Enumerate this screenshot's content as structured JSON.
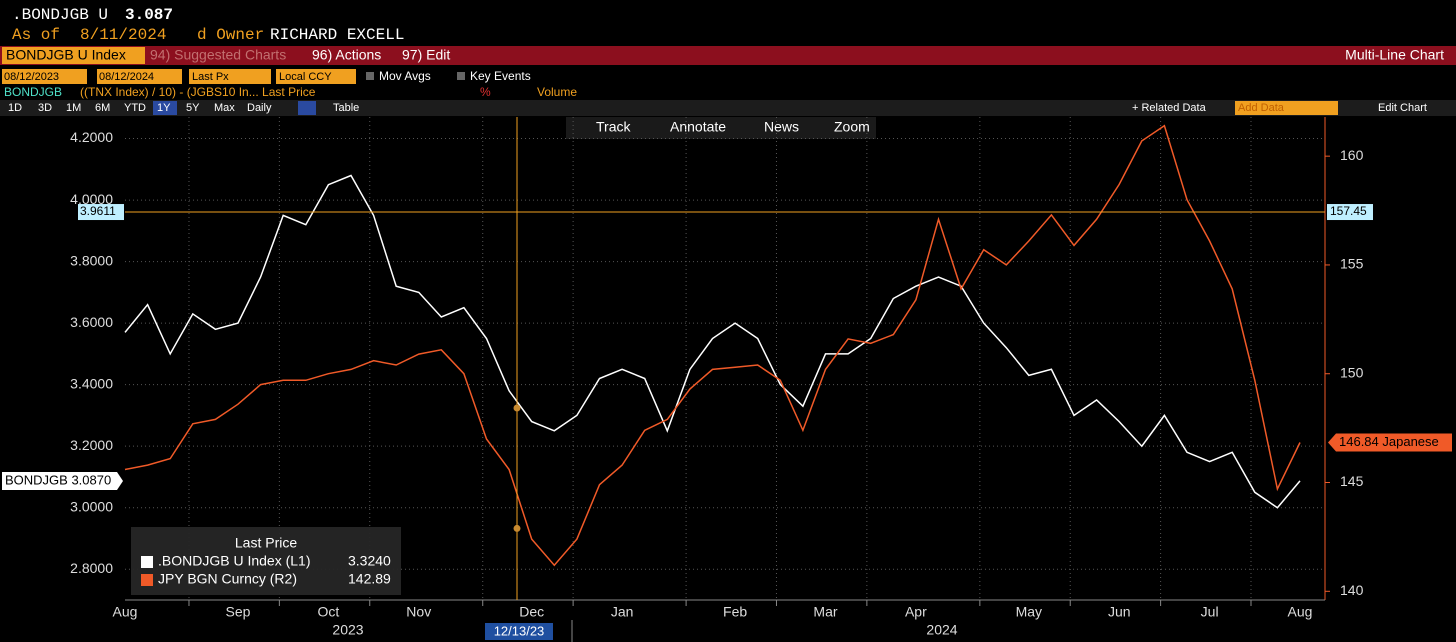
{
  "ui": {
    "ticker": ".BONDJGB U",
    "last": "3.087",
    "as_of_label": "As of",
    "as_of": "8/11/2024",
    "owner_label": "d Owner",
    "owner": "RICHARD EXCELL",
    "menu": [
      "BONDJGB U Index",
      "94) Suggested Charts",
      "96) Actions",
      "97) Edit"
    ],
    "chart_kind": "Multi-Line Chart",
    "start_date": "08/12/2023",
    "end_date": "08/12/2024",
    "field": "Last Px",
    "currency": "Local CCY",
    "mov_avgs": "Mov Avgs",
    "key_events": "Key Events",
    "study_name": "BONDJGB",
    "study_formula": "((TNX Index) / 10) - (JGBS10 In... Last Price",
    "percent": "%",
    "volume": "Volume",
    "periods": [
      "1D",
      "3D",
      "1M",
      "6M",
      "YTD",
      "1Y",
      "5Y",
      "Max"
    ],
    "frequency": "Daily",
    "table": "Table",
    "related_data": "+ Related Data",
    "add_data": "Add Data",
    "edit_chart": "Edit Chart",
    "tools": [
      "Track",
      "Annotate",
      "News",
      "Zoom"
    ]
  },
  "chart_data": {
    "type": "line",
    "categories": [
      "Aug",
      null,
      null,
      null,
      null,
      "Sep",
      null,
      null,
      null,
      "Oct",
      null,
      null,
      null,
      "Nov",
      null,
      null,
      null,
      null,
      "Dec",
      null,
      null,
      null,
      "Jan",
      null,
      null,
      null,
      null,
      "Feb",
      null,
      null,
      null,
      "Mar",
      null,
      null,
      null,
      "Apr",
      null,
      null,
      null,
      null,
      "May",
      null,
      null,
      null,
      "Jun",
      null,
      null,
      null,
      "Jul",
      null,
      null,
      null,
      "Aug"
    ],
    "years": [
      "2023",
      "2024"
    ],
    "series": [
      {
        "name": ".BONDJGB U Index (L1)",
        "color": "#ffffff",
        "axis": "y",
        "values": [
          3.57,
          3.66,
          3.5,
          3.63,
          3.58,
          3.6,
          3.75,
          3.95,
          3.92,
          4.05,
          4.08,
          3.95,
          3.72,
          3.7,
          3.62,
          3.65,
          3.55,
          3.38,
          3.28,
          3.25,
          3.3,
          3.42,
          3.45,
          3.42,
          3.25,
          3.45,
          3.55,
          3.6,
          3.55,
          3.4,
          3.33,
          3.5,
          3.5,
          3.55,
          3.68,
          3.72,
          3.75,
          3.72,
          3.6,
          3.52,
          3.43,
          3.45,
          3.3,
          3.35,
          3.28,
          3.2,
          3.3,
          3.18,
          3.15,
          3.18,
          3.05,
          3.0,
          3.087
        ],
        "end_label": "BONDJGB 3.0870"
      },
      {
        "name": "JPY BGN Curncy (R2)",
        "color": "#f05a28",
        "axis": "y2",
        "values": [
          145.6,
          145.8,
          146.1,
          147.7,
          147.9,
          148.6,
          149.5,
          149.7,
          149.7,
          150.0,
          150.2,
          150.6,
          150.4,
          150.9,
          151.1,
          150.0,
          147.0,
          145.6,
          142.4,
          141.2,
          142.4,
          144.9,
          145.8,
          147.4,
          147.9,
          149.3,
          150.2,
          150.3,
          150.4,
          149.7,
          147.4,
          150.2,
          151.6,
          151.4,
          151.8,
          153.4,
          157.1,
          153.9,
          155.7,
          155.0,
          156.1,
          157.3,
          155.9,
          157.1,
          158.7,
          160.7,
          161.4,
          158.0,
          156.1,
          153.9,
          149.7,
          144.7,
          146.84
        ],
        "end_label": "146.84 Japanese"
      }
    ],
    "ylim": [
      2.7,
      4.27
    ],
    "yticks": [
      {
        "value": 2.8,
        "label": "2.8000"
      },
      {
        "value": 3.0,
        "label": "3.0000"
      },
      {
        "value": 3.2,
        "label": "3.2000"
      },
      {
        "value": 3.4,
        "label": "3.4000"
      },
      {
        "value": 3.6,
        "label": "3.6000"
      },
      {
        "value": 3.8,
        "label": "3.8000"
      },
      {
        "value": 4.0,
        "label": "4.0000"
      },
      {
        "value": 4.2,
        "label": "4.2000"
      }
    ],
    "y2lim": [
      139.6,
      161.8
    ],
    "y2ticks": [
      140,
      145,
      150,
      155,
      160
    ],
    "grid": true,
    "crosshair": {
      "y": 3.9611,
      "y2": 157.45,
      "x_label": "12/13/23",
      "values": [
        3.324,
        142.89
      ],
      "value_labels": [
        "3.3240",
        "142.89"
      ]
    },
    "legend_title": "Last Price"
  }
}
